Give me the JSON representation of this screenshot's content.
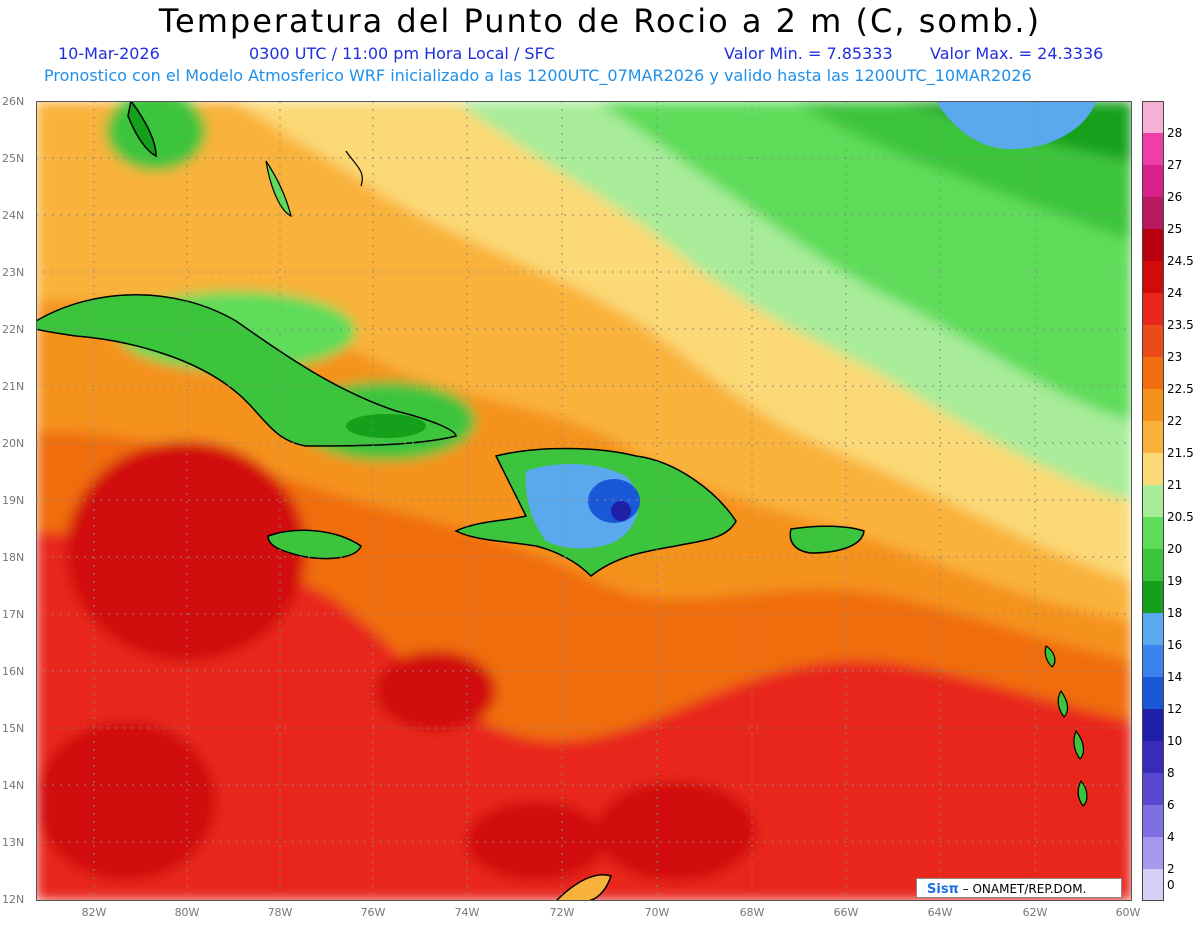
{
  "title": "Temperatura del Punto de Rocio a 2 m (C, somb.)",
  "subtitle": {
    "date": "10-Mar-2026",
    "time": "0300 UTC / 11:00 pm Hora Local / SFC",
    "min": "Valor Min. = 7.85333",
    "max": "Valor Max. = 24.3336",
    "model": "Pronostico con el Modelo Atmosferico WRF inicializado a las 1200UTC_07MAR2026 y valido hasta las  1200UTC_10MAR2026"
  },
  "lat_labels": [
    "26N",
    "25N",
    "24N",
    "23N",
    "22N",
    "21N",
    "20N",
    "19N",
    "18N",
    "17N",
    "16N",
    "15N",
    "14N",
    "13N",
    "12N"
  ],
  "lon_labels": [
    "82W",
    "80W",
    "78W",
    "76W",
    "74W",
    "72W",
    "70W",
    "68W",
    "66W",
    "64W",
    "62W",
    "60W"
  ],
  "colorbar": {
    "labels": [
      "28",
      "27",
      "26",
      "25",
      "24.5",
      "24",
      "23.5",
      "23",
      "22.5",
      "22",
      "21.5",
      "21",
      "20.5",
      "20",
      "19",
      "18",
      "16",
      "14",
      "12",
      "10",
      "8",
      "6",
      "4",
      "2",
      "0"
    ],
    "colors": [
      "#f6b0d6",
      "#ee3ea8",
      "#d81f8a",
      "#b81860",
      "#b8000f",
      "#d20a0a",
      "#e8271a",
      "#ec4a18",
      "#f06d10",
      "#f5921b",
      "#f9b23b",
      "#fbd976",
      "#a8ec9a",
      "#5edc5a",
      "#3cc43c",
      "#14a01a",
      "#5aa8ee",
      "#3b84f0",
      "#1b58d8",
      "#1f1fa8",
      "#3a2ab8",
      "#5a48d0",
      "#7e70e0",
      "#a898f0",
      "#d6d0f6"
    ]
  },
  "credit": {
    "logo": "Sisπ",
    "text": "– ONAMET/REP.DOM."
  }
}
